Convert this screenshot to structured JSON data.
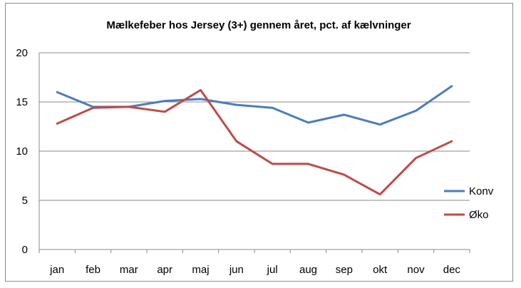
{
  "chart_data": {
    "type": "line",
    "title": "Mælkefeber hos Jersey (3+) gennem året, pct. af kælvninger",
    "xlabel": "",
    "ylabel": "",
    "categories": [
      "jan",
      "feb",
      "mar",
      "apr",
      "maj",
      "jun",
      "jul",
      "aug",
      "sep",
      "okt",
      "nov",
      "dec"
    ],
    "ylim": [
      0,
      20
    ],
    "yticks": [
      "0",
      "5",
      "10",
      "15",
      "20"
    ],
    "grid": true,
    "legend_position": "right",
    "series": [
      {
        "name": "Konv",
        "color": "#4a7ebb",
        "values": [
          16.0,
          14.5,
          14.5,
          15.1,
          15.3,
          14.7,
          14.4,
          12.9,
          13.7,
          12.7,
          14.1,
          16.6
        ]
      },
      {
        "name": "Øko",
        "color": "#be4b48",
        "values": [
          12.8,
          14.4,
          14.5,
          14.0,
          16.2,
          11.0,
          8.7,
          8.7,
          7.6,
          5.6,
          9.3,
          11.0
        ]
      }
    ]
  }
}
